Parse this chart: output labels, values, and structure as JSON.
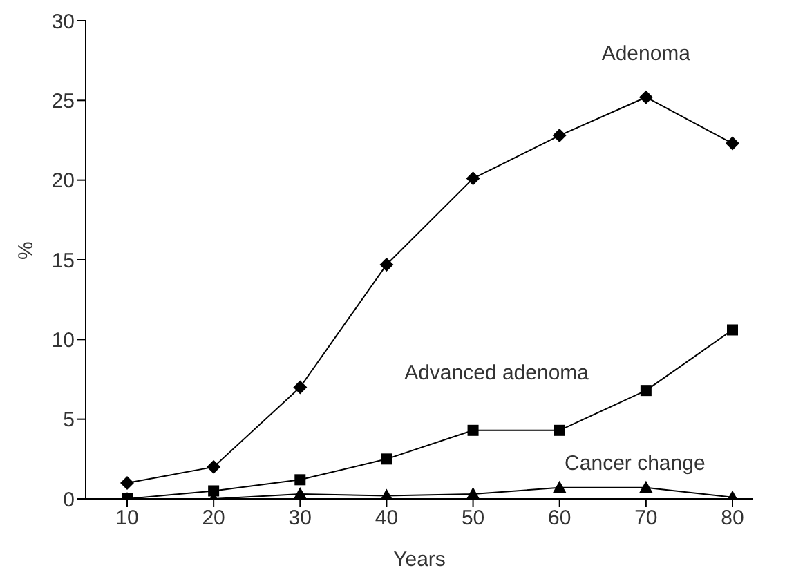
{
  "chart_data": {
    "type": "line",
    "xlabel": "Years",
    "ylabel": "%",
    "categories": [
      "10",
      "20",
      "30",
      "40",
      "50",
      "60",
      "70",
      "80"
    ],
    "series": [
      {
        "name": "Adenoma",
        "color": "#000000",
        "marker": "diamond",
        "values": [
          1.0,
          2.0,
          7.0,
          14.7,
          20.1,
          22.8,
          25.2,
          22.3
        ]
      },
      {
        "name": "Advanced adenoma",
        "color": "#000000",
        "marker": "square",
        "values": [
          0.0,
          0.5,
          1.2,
          2.5,
          4.3,
          4.3,
          6.8,
          10.6
        ]
      },
      {
        "name": "Cancer change",
        "color": "#000000",
        "marker": "triangle",
        "values": [
          0.0,
          0.0,
          0.3,
          0.2,
          0.3,
          0.7,
          0.7,
          0.1
        ]
      }
    ],
    "ylim": [
      0,
      30
    ],
    "yticks": [
      0,
      5,
      10,
      15,
      20,
      25,
      30
    ],
    "grid": false,
    "legend": false
  }
}
